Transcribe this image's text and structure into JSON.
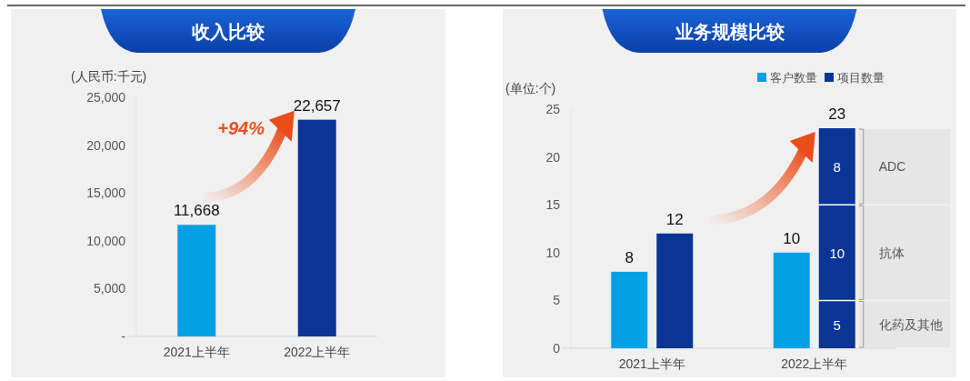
{
  "chart_data": [
    {
      "type": "bar",
      "title": "收入比较",
      "ylabel": "(人民币:千元)",
      "categories": [
        "2021上半年",
        "2022上半年"
      ],
      "values": [
        11668,
        22657
      ],
      "colors": [
        "#04a0e4",
        "#0a3597"
      ],
      "value_labels": [
        "11,668",
        "22,657"
      ],
      "ylim": [
        0,
        25000
      ],
      "yticks": [
        {
          "value": 0,
          "label": "-"
        },
        {
          "value": 5000,
          "label": "5,000"
        },
        {
          "value": 10000,
          "label": "10,000"
        },
        {
          "value": 15000,
          "label": "15,000"
        },
        {
          "value": 20000,
          "label": "20,000"
        },
        {
          "value": 25000,
          "label": "25,000"
        }
      ],
      "annotations": [
        "+94%"
      ]
    },
    {
      "type": "bar",
      "title": "业务规模比较",
      "ylabel": "(单位:个)",
      "categories": [
        "2021上半年",
        "2022上半年"
      ],
      "series": [
        {
          "name": "客户数量",
          "color": "#04a0e4",
          "values": [
            8,
            10
          ],
          "value_labels": [
            "8",
            "10"
          ]
        },
        {
          "name": "项目数量",
          "color": "#0a3597",
          "values": [
            12,
            23
          ],
          "value_labels": [
            "12",
            "23"
          ]
        }
      ],
      "ylim": [
        0,
        25
      ],
      "yticks": [
        0,
        5,
        10,
        15,
        20,
        25
      ],
      "legend": "top right",
      "bands": [
        {
          "axis": "y",
          "from": 15,
          "to": 23,
          "label": "ADC"
        },
        {
          "axis": "y",
          "from": 5,
          "to": 15,
          "label": "抗体"
        },
        {
          "axis": "y",
          "from": 0,
          "to": 5,
          "label": "化药及其他"
        }
      ],
      "annotations": [
        {
          "text": "8",
          "x": "2022上半年",
          "y": 19
        },
        {
          "text": "10",
          "x": "2022上半年",
          "y": 10
        },
        {
          "text": "5",
          "x": "2022上半年",
          "y": 2.5
        }
      ]
    }
  ]
}
